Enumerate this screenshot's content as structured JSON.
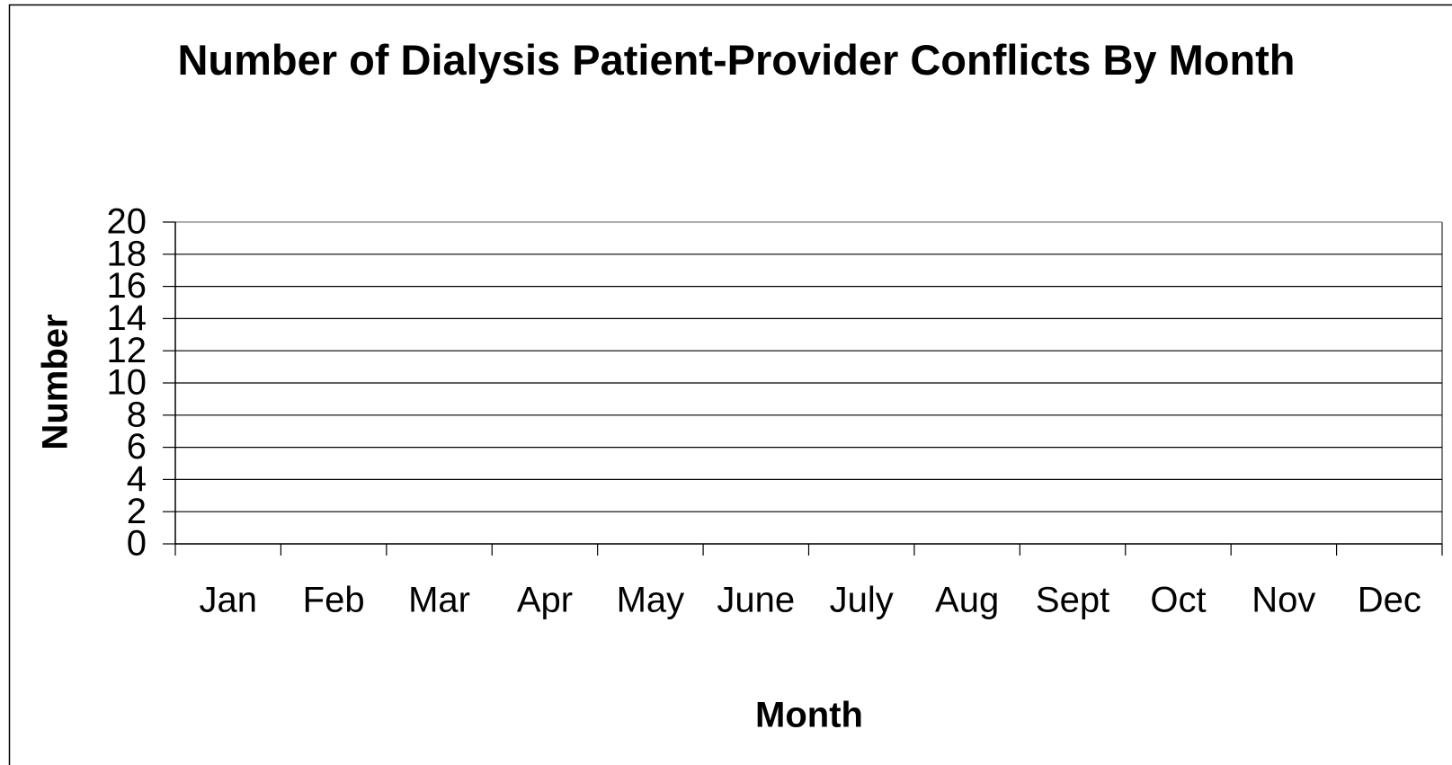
{
  "chart_data": {
    "type": "bar",
    "title": "Number of Dialysis Patient-Provider Conflicts By Month",
    "x_label": "Month",
    "y_label": "Number",
    "categories": [
      "Jan",
      "Feb",
      "Mar",
      "Apr",
      "May",
      "June",
      "July",
      "Aug",
      "Sept",
      "Oct",
      "Nov",
      "Dec"
    ],
    "ylim": [
      0,
      20
    ],
    "yticks": [
      0,
      2,
      4,
      6,
      8,
      10,
      12,
      14,
      16,
      18,
      20
    ],
    "grid": true
  }
}
